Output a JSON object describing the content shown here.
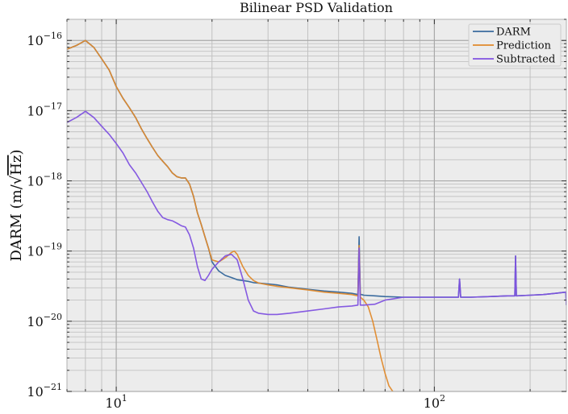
{
  "chart_data": {
    "type": "line",
    "title": "Bilinear PSD Validation",
    "ylabel": "DARM (m/√Hz)",
    "ylabel_parts": {
      "main": "DARM (m/",
      "root": "√",
      "unit": "Hz",
      "close": ")"
    },
    "xlabel": "",
    "xscale": "log",
    "yscale": "log",
    "xlim": [
      7,
      260
    ],
    "ylim": [
      1e-21,
      2e-16
    ],
    "grid": true,
    "legend_position": "top-right",
    "x_ticks": [
      {
        "value": 10,
        "base": "10",
        "exp": "1"
      },
      {
        "value": 100,
        "base": "10",
        "exp": "2"
      }
    ],
    "y_ticks": [
      {
        "value": 1e-16,
        "base": "10",
        "exp": "−16"
      },
      {
        "value": 1e-17,
        "base": "10",
        "exp": "−17"
      },
      {
        "value": 1e-18,
        "base": "10",
        "exp": "−18"
      },
      {
        "value": 1e-19,
        "base": "10",
        "exp": "−19"
      },
      {
        "value": 1e-20,
        "base": "10",
        "exp": "−20"
      },
      {
        "value": 1e-21,
        "base": "10",
        "exp": "−21"
      }
    ],
    "series": [
      {
        "name": "DARM",
        "color": "#3a6b9e",
        "x": [
          7,
          7.5,
          8,
          8.5,
          9,
          9.5,
          10,
          10.5,
          11,
          11.5,
          12,
          12.5,
          13,
          13.5,
          14,
          14.5,
          15,
          15.5,
          16,
          16.5,
          17,
          17.5,
          18,
          18.5,
          19,
          19.5,
          20,
          20.5,
          21,
          22,
          23,
          24,
          25,
          26,
          27,
          28,
          30,
          32,
          35,
          40,
          45,
          50,
          55,
          57.5,
          58,
          58.5,
          59,
          60,
          65,
          70,
          80,
          90,
          100,
          110,
          119,
          120,
          121,
          130,
          150,
          170,
          179,
          180,
          181,
          200,
          220,
          240,
          259,
          260
        ],
        "y": [
          7.5e-17,
          8.5e-17,
          1e-16,
          8e-17,
          5.5e-17,
          3.8e-17,
          2.2e-17,
          1.5e-17,
          1.1e-17,
          8e-18,
          5.5e-18,
          4e-18,
          3e-18,
          2.3e-18,
          1.9e-18,
          1.6e-18,
          1.3e-18,
          1.15e-18,
          1.1e-18,
          1.1e-18,
          9e-19,
          6e-19,
          3.5e-19,
          2.4e-19,
          1.6e-19,
          1.1e-19,
          7e-20,
          6e-20,
          5.2e-20,
          4.5e-20,
          4.2e-20,
          3.9e-20,
          3.8e-20,
          3.7e-20,
          3.55e-20,
          3.5e-20,
          3.4e-20,
          3.3e-20,
          3.05e-20,
          2.85e-20,
          2.7e-20,
          2.6e-20,
          2.5e-20,
          2.4e-20,
          1.6e-19,
          2.4e-20,
          2.4e-20,
          2.35e-20,
          2.3e-20,
          2.25e-20,
          2.2e-20,
          2.2e-20,
          2.2e-20,
          2.2e-20,
          2.2e-20,
          4e-20,
          2.2e-20,
          2.2e-20,
          2.25e-20,
          2.3e-20,
          2.3e-20,
          8.5e-20,
          2.3e-20,
          2.35e-20,
          2.4e-20,
          2.5e-20,
          2.6e-20,
          1.7e-20
        ]
      },
      {
        "name": "Prediction",
        "color": "#e08a2c",
        "x": [
          7,
          7.5,
          8,
          8.5,
          9,
          9.5,
          10,
          10.5,
          11,
          11.5,
          12,
          12.5,
          13,
          13.5,
          14,
          14.5,
          15,
          15.5,
          16,
          16.5,
          17,
          17.5,
          18,
          18.5,
          19,
          19.5,
          20,
          21,
          22,
          23,
          23.5,
          24,
          25,
          26,
          27,
          28,
          30,
          32,
          35,
          40,
          45,
          50,
          55,
          57.5,
          58,
          58.5,
          60,
          62,
          64,
          66,
          68,
          70,
          72,
          74
        ],
        "y": [
          7.5e-17,
          8.5e-17,
          1e-16,
          8e-17,
          5.5e-17,
          3.8e-17,
          2.2e-17,
          1.5e-17,
          1.1e-17,
          8e-18,
          5.5e-18,
          4e-18,
          3e-18,
          2.3e-18,
          1.9e-18,
          1.6e-18,
          1.3e-18,
          1.15e-18,
          1.1e-18,
          1.1e-18,
          9e-19,
          6e-19,
          3.5e-19,
          2.4e-19,
          1.6e-19,
          1.1e-19,
          7.5e-20,
          7e-20,
          8e-20,
          9.5e-20,
          1e-19,
          9e-20,
          6e-20,
          4.5e-20,
          3.8e-20,
          3.5e-20,
          3.3e-20,
          3.15e-20,
          3e-20,
          2.8e-20,
          2.6e-20,
          2.5e-20,
          2.4e-20,
          2.3e-20,
          1.2e-19,
          2.2e-20,
          2e-20,
          1.6e-20,
          1e-20,
          5.5e-21,
          3e-21,
          1.8e-21,
          1.2e-21,
          1e-21
        ]
      },
      {
        "name": "Subtracted",
        "color": "#8052e0",
        "x": [
          7,
          7.5,
          8,
          8.5,
          9,
          9.5,
          10,
          10.5,
          11,
          11.5,
          12,
          12.5,
          13,
          13.5,
          14,
          14.5,
          15,
          15.5,
          16,
          16.5,
          17,
          17.5,
          18,
          18.5,
          19,
          19.5,
          20,
          21,
          22,
          23,
          24,
          25,
          26,
          27,
          28,
          30,
          32,
          35,
          40,
          45,
          50,
          55,
          57.5,
          58,
          58.5,
          60,
          65,
          70,
          80,
          90,
          100,
          110,
          119,
          120,
          121,
          130,
          150,
          170,
          179,
          180,
          181,
          200,
          220,
          240,
          259,
          260
        ],
        "y": [
          6.8e-18,
          8e-18,
          9.8e-18,
          8e-18,
          6e-18,
          4.6e-18,
          3.4e-18,
          2.5e-18,
          1.7e-18,
          1.3e-18,
          9.5e-19,
          7e-19,
          5e-19,
          3.7e-19,
          3e-19,
          2.8e-19,
          2.7e-19,
          2.5e-19,
          2.3e-19,
          2.2e-19,
          1.7e-19,
          1.1e-19,
          6e-20,
          4e-20,
          3.8e-20,
          4.5e-20,
          5.5e-20,
          7e-20,
          8.5e-20,
          9e-20,
          7.5e-20,
          4e-20,
          2e-20,
          1.4e-20,
          1.3e-20,
          1.25e-20,
          1.25e-20,
          1.3e-20,
          1.4e-20,
          1.5e-20,
          1.6e-20,
          1.65e-20,
          1.7e-20,
          1.1e-19,
          1.7e-20,
          1.7e-20,
          1.75e-20,
          2e-20,
          2.2e-20,
          2.2e-20,
          2.2e-20,
          2.2e-20,
          2.2e-20,
          4e-20,
          2.2e-20,
          2.2e-20,
          2.25e-20,
          2.3e-20,
          2.3e-20,
          8.5e-20,
          2.3e-20,
          2.35e-20,
          2.4e-20,
          2.5e-20,
          2.6e-20,
          1.7e-20
        ]
      }
    ]
  }
}
